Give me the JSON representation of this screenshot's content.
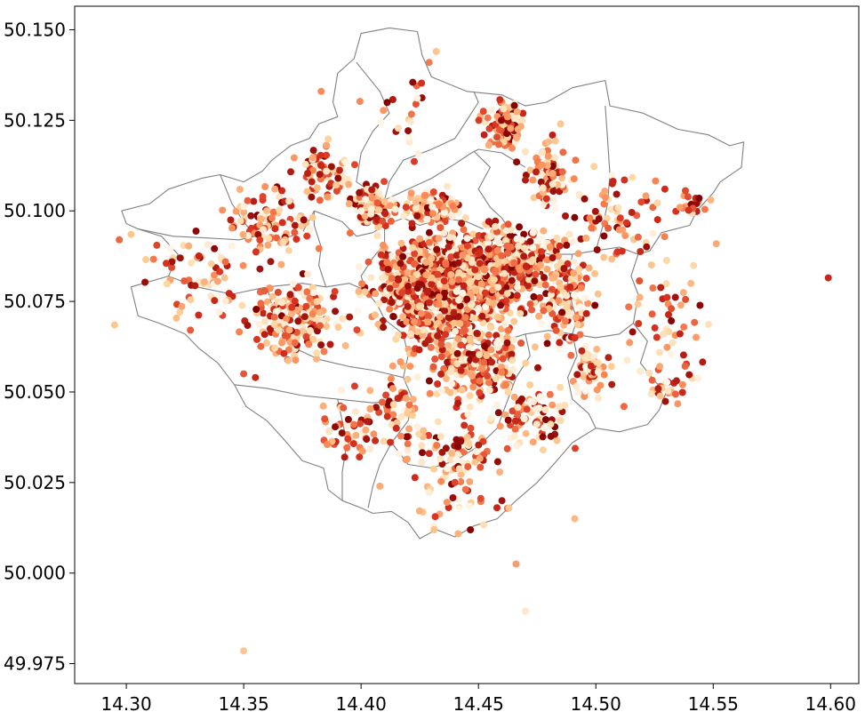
{
  "chart_data": {
    "type": "scatter",
    "title": "",
    "xlabel": "",
    "ylabel": "",
    "xlim": [
      14.278,
      14.612
    ],
    "ylim": [
      49.9695,
      50.1565
    ],
    "grid": false,
    "colormap": "OrRd",
    "colormap_stops": [
      "#fff7ec",
      "#fdd49e",
      "#fc8d59",
      "#d7301f",
      "#7f0000"
    ],
    "boundary_color": "#808080",
    "x_ticks": [
      {
        "value": 14.3,
        "label": "14.30"
      },
      {
        "value": 14.35,
        "label": "14.35"
      },
      {
        "value": 14.4,
        "label": "14.40"
      },
      {
        "value": 14.45,
        "label": "14.45"
      },
      {
        "value": 14.5,
        "label": "14.50"
      },
      {
        "value": 14.55,
        "label": "14.55"
      },
      {
        "value": 14.6,
        "label": "14.60"
      }
    ],
    "y_ticks": [
      {
        "value": 49.975,
        "label": "49.975"
      },
      {
        "value": 50.0,
        "label": "50.000"
      },
      {
        "value": 50.025,
        "label": "50.025"
      },
      {
        "value": 50.05,
        "label": "50.050"
      },
      {
        "value": 50.075,
        "label": "50.075"
      },
      {
        "value": 50.1,
        "label": "50.100"
      },
      {
        "value": 50.125,
        "label": "50.125"
      },
      {
        "value": 50.15,
        "label": "50.150"
      }
    ],
    "outer_boundary": [
      [
        14.4,
        50.149
      ],
      [
        14.412,
        50.1505
      ],
      [
        14.424,
        50.1495
      ],
      [
        14.426,
        50.143
      ],
      [
        14.43,
        50.137
      ],
      [
        14.445,
        50.133
      ],
      [
        14.46,
        50.132
      ],
      [
        14.47,
        50.129
      ],
      [
        14.479,
        50.13
      ],
      [
        14.49,
        50.134
      ],
      [
        14.504,
        50.136
      ],
      [
        14.506,
        50.129
      ],
      [
        14.52,
        50.127
      ],
      [
        14.535,
        50.1225
      ],
      [
        14.548,
        50.121
      ],
      [
        14.557,
        50.118
      ],
      [
        14.563,
        50.119
      ],
      [
        14.562,
        50.112
      ],
      [
        14.553,
        50.108
      ],
      [
        14.55,
        50.105
      ],
      [
        14.543,
        50.1
      ],
      [
        14.54,
        50.096
      ],
      [
        14.528,
        50.094
      ],
      [
        14.523,
        50.089
      ],
      [
        14.518,
        50.088
      ],
      [
        14.515,
        50.082
      ],
      [
        14.518,
        50.077
      ],
      [
        14.516,
        50.069
      ],
      [
        14.522,
        50.064
      ],
      [
        14.519,
        50.058
      ],
      [
        14.525,
        50.053
      ],
      [
        14.53,
        50.05
      ],
      [
        14.527,
        50.045
      ],
      [
        14.522,
        50.041
      ],
      [
        14.51,
        50.039
      ],
      [
        14.5,
        50.04
      ],
      [
        14.49,
        50.036
      ],
      [
        14.482,
        50.03
      ],
      [
        14.475,
        50.025
      ],
      [
        14.466,
        50.02
      ],
      [
        14.458,
        50.015
      ],
      [
        14.448,
        50.013
      ],
      [
        14.44,
        50.01
      ],
      [
        14.432,
        50.012
      ],
      [
        14.425,
        50.0095
      ],
      [
        14.42,
        50.014
      ],
      [
        14.413,
        50.017
      ],
      [
        14.405,
        50.0165
      ],
      [
        14.4,
        50.018
      ],
      [
        14.392,
        50.02
      ],
      [
        14.386,
        50.023
      ],
      [
        14.384,
        50.029
      ],
      [
        14.375,
        50.031
      ],
      [
        14.367,
        50.037
      ],
      [
        14.36,
        50.042
      ],
      [
        14.351,
        50.046
      ],
      [
        14.346,
        50.052
      ],
      [
        14.339,
        50.058
      ],
      [
        14.331,
        50.062
      ],
      [
        14.325,
        50.066
      ],
      [
        14.314,
        50.069
      ],
      [
        14.305,
        50.071
      ],
      [
        14.302,
        50.079
      ],
      [
        14.318,
        50.082
      ],
      [
        14.322,
        50.088
      ],
      [
        14.315,
        50.093
      ],
      [
        14.305,
        50.095
      ],
      [
        14.3,
        50.0965
      ],
      [
        14.298,
        50.1
      ],
      [
        14.31,
        50.102
      ],
      [
        14.318,
        50.106
      ],
      [
        14.332,
        50.109
      ],
      [
        14.34,
        50.11
      ],
      [
        14.35,
        50.108
      ],
      [
        14.358,
        50.111
      ],
      [
        14.362,
        50.114
      ],
      [
        14.37,
        50.118
      ],
      [
        14.378,
        50.12
      ],
      [
        14.382,
        50.124
      ],
      [
        14.39,
        50.126
      ],
      [
        14.388,
        50.13
      ],
      [
        14.39,
        50.138
      ],
      [
        14.397,
        50.142
      ],
      [
        14.4,
        50.149
      ]
    ],
    "internal_boundaries": [
      [
        [
          14.398,
          50.141
        ],
        [
          14.408,
          50.133
        ],
        [
          14.412,
          50.127
        ],
        [
          14.405,
          50.122
        ],
        [
          14.4,
          50.116
        ],
        [
          14.398,
          50.108
        ],
        [
          14.405,
          50.105
        ],
        [
          14.41,
          50.103
        ]
      ],
      [
        [
          14.41,
          50.103
        ],
        [
          14.42,
          50.106
        ],
        [
          14.43,
          50.109
        ],
        [
          14.44,
          50.113
        ],
        [
          14.447,
          50.116
        ],
        [
          14.45,
          50.117
        ],
        [
          14.46,
          50.116
        ],
        [
          14.47,
          50.112
        ]
      ],
      [
        [
          14.448,
          50.1165
        ],
        [
          14.455,
          50.112
        ],
        [
          14.45,
          50.106
        ],
        [
          14.455,
          50.101
        ],
        [
          14.46,
          50.098
        ],
        [
          14.465,
          50.093
        ],
        [
          14.472,
          50.09
        ],
        [
          14.48,
          50.088
        ]
      ],
      [
        [
          14.38,
          50.1
        ],
        [
          14.392,
          50.097
        ],
        [
          14.398,
          50.093
        ],
        [
          14.405,
          50.094
        ],
        [
          14.41,
          50.096
        ],
        [
          14.418,
          50.098
        ],
        [
          14.425,
          50.096
        ],
        [
          14.435,
          50.098
        ],
        [
          14.445,
          50.097
        ],
        [
          14.452,
          50.095
        ]
      ],
      [
        [
          14.41,
          50.096
        ],
        [
          14.41,
          50.091
        ],
        [
          14.405,
          50.087
        ],
        [
          14.4,
          50.082
        ],
        [
          14.402,
          50.078
        ],
        [
          14.407,
          50.074
        ],
        [
          14.41,
          50.07
        ],
        [
          14.418,
          50.066
        ],
        [
          14.42,
          50.06
        ],
        [
          14.418,
          50.054
        ],
        [
          14.422,
          50.048
        ],
        [
          14.42,
          50.042
        ],
        [
          14.413,
          50.036
        ],
        [
          14.408,
          50.03
        ],
        [
          14.405,
          50.024
        ],
        [
          14.403,
          50.018
        ]
      ],
      [
        [
          14.418,
          50.066
        ],
        [
          14.43,
          50.064
        ],
        [
          14.44,
          50.065
        ],
        [
          14.45,
          50.063
        ],
        [
          14.46,
          50.064
        ],
        [
          14.47,
          50.066
        ],
        [
          14.48,
          50.067
        ],
        [
          14.49,
          50.066
        ],
        [
          14.5,
          50.065
        ],
        [
          14.51,
          50.066
        ],
        [
          14.516,
          50.069
        ]
      ],
      [
        [
          14.47,
          50.066
        ],
        [
          14.472,
          50.06
        ],
        [
          14.466,
          50.054
        ],
        [
          14.462,
          50.047
        ],
        [
          14.458,
          50.04
        ],
        [
          14.45,
          50.035
        ],
        [
          14.44,
          50.031
        ],
        [
          14.43,
          50.029
        ],
        [
          14.42,
          50.03
        ],
        [
          14.413,
          50.036
        ]
      ],
      [
        [
          14.49,
          50.066
        ],
        [
          14.492,
          50.06
        ],
        [
          14.488,
          50.054
        ],
        [
          14.49,
          50.048
        ],
        [
          14.497,
          50.044
        ],
        [
          14.5,
          50.04
        ]
      ],
      [
        [
          14.48,
          50.088
        ],
        [
          14.49,
          50.088
        ],
        [
          14.5,
          50.089
        ],
        [
          14.51,
          50.09
        ],
        [
          14.518,
          50.088
        ]
      ],
      [
        [
          14.5,
          50.089
        ],
        [
          14.503,
          50.096
        ],
        [
          14.505,
          50.102
        ],
        [
          14.506,
          50.11
        ],
        [
          14.505,
          50.12
        ],
        [
          14.504,
          50.129
        ]
      ],
      [
        [
          14.49,
          50.088
        ],
        [
          14.488,
          50.08
        ],
        [
          14.49,
          50.074
        ],
        [
          14.492,
          50.07
        ],
        [
          14.49,
          50.066
        ]
      ],
      [
        [
          14.34,
          50.11
        ],
        [
          14.345,
          50.102
        ],
        [
          14.35,
          50.097
        ],
        [
          14.355,
          50.093
        ],
        [
          14.365,
          50.092
        ],
        [
          14.375,
          50.094
        ],
        [
          14.38,
          50.1
        ]
      ],
      [
        [
          14.305,
          50.095
        ],
        [
          14.32,
          50.093
        ],
        [
          14.335,
          50.0925
        ],
        [
          14.348,
          50.092
        ],
        [
          14.355,
          50.093
        ]
      ],
      [
        [
          14.318,
          50.082
        ],
        [
          14.33,
          50.079
        ],
        [
          14.345,
          50.077
        ],
        [
          14.36,
          50.079
        ],
        [
          14.375,
          50.08
        ],
        [
          14.385,
          50.079
        ],
        [
          14.395,
          50.08
        ],
        [
          14.402,
          50.078
        ]
      ],
      [
        [
          14.36,
          50.079
        ],
        [
          14.362,
          50.074
        ],
        [
          14.365,
          50.068
        ],
        [
          14.372,
          50.062
        ],
        [
          14.382,
          50.059
        ],
        [
          14.395,
          50.057
        ],
        [
          14.405,
          50.056
        ],
        [
          14.418,
          50.054
        ]
      ],
      [
        [
          14.346,
          50.052
        ],
        [
          14.36,
          50.051
        ],
        [
          14.375,
          50.049
        ],
        [
          14.39,
          50.048
        ],
        [
          14.405,
          50.047
        ],
        [
          14.422,
          50.048
        ]
      ],
      [
        [
          14.39,
          50.048
        ],
        [
          14.392,
          50.042
        ],
        [
          14.394,
          50.036
        ],
        [
          14.392,
          50.028
        ],
        [
          14.392,
          50.02
        ]
      ],
      [
        [
          14.385,
          50.079
        ],
        [
          14.382,
          50.085
        ],
        [
          14.383,
          50.09
        ],
        [
          14.38,
          50.096
        ],
        [
          14.38,
          50.1
        ]
      ],
      [
        [
          14.41,
          50.103
        ],
        [
          14.412,
          50.108
        ],
        [
          14.418,
          50.114
        ],
        [
          14.43,
          50.117
        ],
        [
          14.44,
          50.12
        ],
        [
          14.445,
          50.125
        ],
        [
          14.45,
          50.13
        ],
        [
          14.448,
          50.133
        ]
      ]
    ],
    "clusters": [
      {
        "x": 14.436,
        "y": 50.079,
        "sx": 0.018,
        "sy": 0.0085,
        "n": 1000
      },
      {
        "x": 14.467,
        "y": 50.086,
        "sx": 0.01,
        "sy": 0.0055,
        "n": 260
      },
      {
        "x": 14.449,
        "y": 50.058,
        "sx": 0.012,
        "sy": 0.006,
        "n": 230
      },
      {
        "x": 14.405,
        "y": 50.101,
        "sx": 0.005,
        "sy": 0.003,
        "n": 120
      },
      {
        "x": 14.43,
        "y": 50.101,
        "sx": 0.006,
        "sy": 0.0025,
        "n": 120
      },
      {
        "x": 14.46,
        "y": 50.123,
        "sx": 0.005,
        "sy": 0.004,
        "n": 90
      },
      {
        "x": 14.48,
        "y": 50.109,
        "sx": 0.004,
        "sy": 0.006,
        "n": 80
      },
      {
        "x": 14.487,
        "y": 50.075,
        "sx": 0.006,
        "sy": 0.007,
        "n": 140
      },
      {
        "x": 14.499,
        "y": 50.056,
        "sx": 0.004,
        "sy": 0.004,
        "n": 60
      },
      {
        "x": 14.372,
        "y": 50.07,
        "sx": 0.011,
        "sy": 0.006,
        "n": 170
      },
      {
        "x": 14.36,
        "y": 50.097,
        "sx": 0.01,
        "sy": 0.006,
        "n": 100
      },
      {
        "x": 14.385,
        "y": 50.11,
        "sx": 0.006,
        "sy": 0.005,
        "n": 70
      },
      {
        "x": 14.475,
        "y": 50.043,
        "sx": 0.008,
        "sy": 0.005,
        "n": 80
      },
      {
        "x": 14.44,
        "y": 50.033,
        "sx": 0.012,
        "sy": 0.006,
        "n": 80
      },
      {
        "x": 14.505,
        "y": 50.098,
        "sx": 0.012,
        "sy": 0.006,
        "n": 70
      },
      {
        "x": 14.53,
        "y": 50.07,
        "sx": 0.01,
        "sy": 0.012,
        "n": 60
      },
      {
        "x": 14.335,
        "y": 50.083,
        "sx": 0.012,
        "sy": 0.008,
        "n": 60
      },
      {
        "x": 14.415,
        "y": 50.045,
        "sx": 0.008,
        "sy": 0.006,
        "n": 60
      },
      {
        "x": 14.395,
        "y": 50.04,
        "sx": 0.008,
        "sy": 0.005,
        "n": 40
      },
      {
        "x": 14.54,
        "y": 50.102,
        "sx": 0.006,
        "sy": 0.003,
        "n": 25
      },
      {
        "x": 14.53,
        "y": 50.05,
        "sx": 0.005,
        "sy": 0.002,
        "n": 20
      },
      {
        "x": 14.44,
        "y": 50.018,
        "sx": 0.01,
        "sy": 0.004,
        "n": 25
      },
      {
        "x": 14.42,
        "y": 50.125,
        "sx": 0.008,
        "sy": 0.007,
        "n": 20
      }
    ],
    "outliers": [
      {
        "x": 14.599,
        "y": 50.0815,
        "v": 0.8
      },
      {
        "x": 14.295,
        "y": 50.0685,
        "v": 0.3
      },
      {
        "x": 14.35,
        "y": 49.9785,
        "v": 0.3
      },
      {
        "x": 14.466,
        "y": 50.0025,
        "v": 0.45
      },
      {
        "x": 14.47,
        "y": 49.9895,
        "v": 0.12
      },
      {
        "x": 14.491,
        "y": 50.015,
        "v": 0.35
      },
      {
        "x": 14.432,
        "y": 50.144,
        "v": 0.3
      },
      {
        "x": 14.429,
        "y": 50.141,
        "v": 0.55
      },
      {
        "x": 14.422,
        "y": 50.1355,
        "v": 0.95
      },
      {
        "x": 14.383,
        "y": 50.133,
        "v": 0.5
      },
      {
        "x": 14.402,
        "y": 50.0395,
        "v": 0.4
      },
      {
        "x": 14.393,
        "y": 50.032,
        "v": 0.85
      },
      {
        "x": 14.35,
        "y": 50.055,
        "v": 0.65
      },
      {
        "x": 14.355,
        "y": 50.054,
        "v": 0.8
      },
      {
        "x": 14.297,
        "y": 50.092,
        "v": 0.6
      },
      {
        "x": 14.302,
        "y": 50.0935,
        "v": 0.3
      },
      {
        "x": 14.313,
        "y": 50.0905,
        "v": 0.7
      },
      {
        "x": 14.323,
        "y": 50.087,
        "v": 0.9
      },
      {
        "x": 14.317,
        "y": 50.0855,
        "v": 0.75
      },
      {
        "x": 14.47,
        "y": 50.1085,
        "v": 0.85
      },
      {
        "x": 14.512,
        "y": 50.046,
        "v": 0.6
      },
      {
        "x": 14.537,
        "y": 50.052,
        "v": 0.5
      },
      {
        "x": 14.549,
        "y": 50.103,
        "v": 0.35
      },
      {
        "x": 14.485,
        "y": 50.124,
        "v": 0.3
      },
      {
        "x": 14.46,
        "y": 50.02,
        "v": 0.9
      },
      {
        "x": 14.408,
        "y": 50.024,
        "v": 0.4
      },
      {
        "x": 14.44,
        "y": 50.025,
        "v": 0.7
      },
      {
        "x": 14.463,
        "y": 50.018,
        "v": 0.3
      }
    ]
  }
}
